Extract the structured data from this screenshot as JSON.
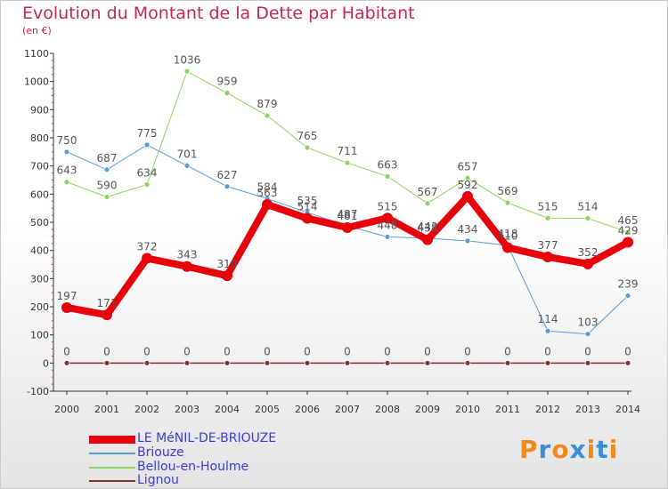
{
  "chart_data": {
    "type": "line",
    "title": "Evolution du Montant de la Dette par Habitant",
    "subtitle": "(en €)",
    "x": [
      "2000",
      "2001",
      "2002",
      "2003",
      "2004",
      "2005",
      "2006",
      "2007",
      "2008",
      "2009",
      "2010",
      "2011",
      "2012",
      "2013",
      "2014"
    ],
    "ylim": [
      -100,
      1100
    ],
    "yticks": [
      "-100",
      "0",
      "100",
      "200",
      "300",
      "400",
      "500",
      "600",
      "700",
      "800",
      "900",
      "1000",
      "1100"
    ],
    "grid": false,
    "legend": "bottom-left",
    "series": [
      {
        "name": "LE MéNIL-DE-BRIOUZE",
        "color": "#e8000b",
        "values": [
          197,
          171,
          372,
          343,
          310,
          563,
          514,
          481,
          515,
          438,
          592,
          410,
          377,
          352,
          429
        ]
      },
      {
        "name": "Briouze",
        "color": "#5b9bd5",
        "values": [
          750,
          687,
          775,
          701,
          627,
          584,
          535,
          487,
          448,
          443,
          434,
          418,
          114,
          103,
          239
        ]
      },
      {
        "name": "Bellou-en-Houlme",
        "color": "#8dd35f",
        "values": [
          643,
          590,
          634,
          1036,
          959,
          879,
          765,
          711,
          663,
          567,
          657,
          569,
          515,
          514,
          465
        ]
      },
      {
        "name": "Lignou",
        "color": "#7a3434",
        "values": [
          0,
          0,
          0,
          0,
          0,
          0,
          0,
          0,
          0,
          0,
          0,
          0,
          0,
          0,
          0
        ]
      }
    ]
  },
  "logo": {
    "text": "Proxiti",
    "colors": [
      "#f08a1c",
      "#3b8fd6",
      "#f08a1c",
      "#3b8fd6",
      "#f08a1c",
      "#3b8fd6",
      "#f08a1c"
    ]
  }
}
